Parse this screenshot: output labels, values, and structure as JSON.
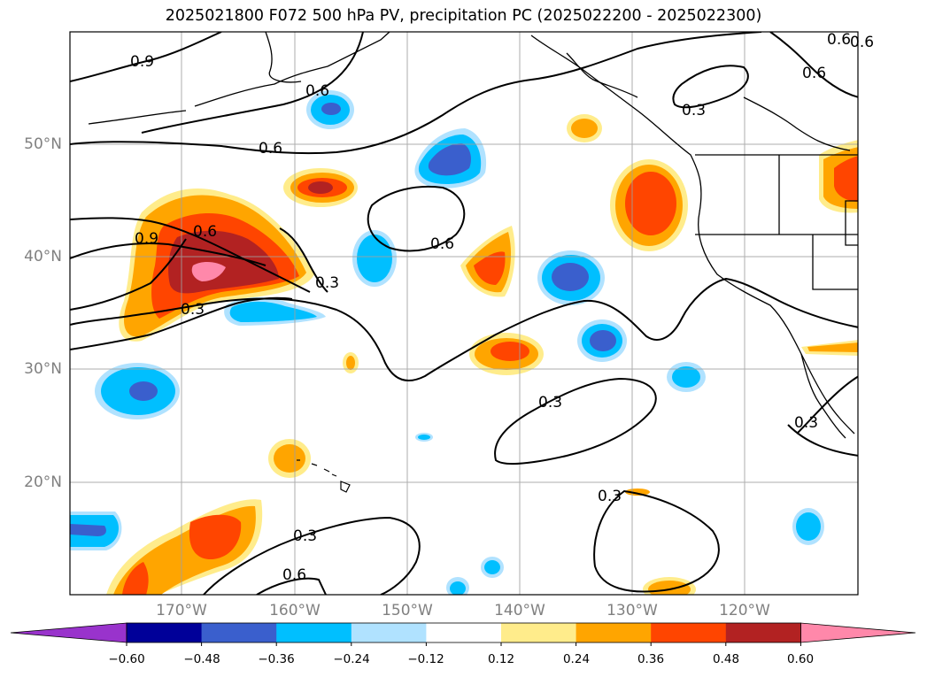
{
  "title": "2025021800 F072 500 hPa PV, precipitation PC (2025022200 - 2025022300)",
  "lat_labels": [
    "50°N",
    "40°N",
    "30°N",
    "20°N"
  ],
  "lon_labels": [
    "170°W",
    "160°W",
    "150°W",
    "140°W",
    "130°W",
    "120°W"
  ],
  "contour_labels": [
    "0.9",
    "0.6",
    "0.6",
    "0.6",
    "0.3",
    "0.6",
    "0.9",
    "0.6",
    "0.3",
    "0.3",
    "0.6",
    "0.3",
    "0.3",
    "0.3",
    "0.3",
    "0.6",
    "0.6"
  ],
  "colorbar": {
    "ticks": [
      "−0.60",
      "−0.48",
      "−0.36",
      "−0.24",
      "−0.12",
      "0.12",
      "0.24",
      "0.36",
      "0.48",
      "0.60"
    ],
    "colors": [
      "#9933cc",
      "#000099",
      "#3a5fcd",
      "#00bfff",
      "#b0e2ff",
      "#ffffff",
      "#ffec8b",
      "#ffa500",
      "#ff4500",
      "#b22222",
      "#ff88aa"
    ]
  },
  "colors": {
    "pos1": "#ffec8b",
    "pos2": "#ffa500",
    "pos3": "#ff4500",
    "pos4": "#b22222",
    "pos5": "#ff88aa",
    "neg1": "#b0e2ff",
    "neg2": "#00bfff",
    "neg3": "#3a5fcd",
    "neg4": "#000099",
    "contour": "#000000",
    "grid": "#a0a0a0",
    "axis_label": "#808080"
  }
}
